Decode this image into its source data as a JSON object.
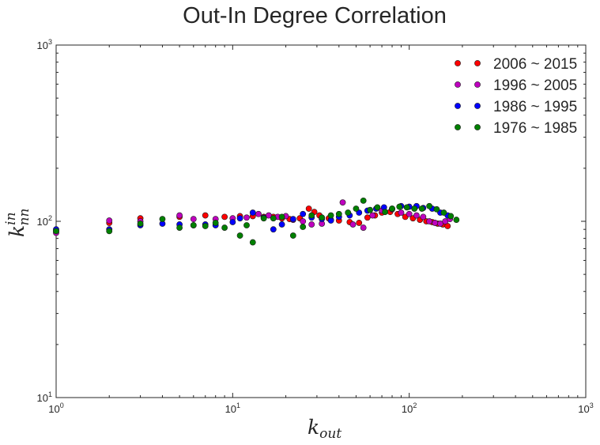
{
  "chart_data": {
    "type": "scatter",
    "title": "Out-In Degree Correlation",
    "xlabel": {
      "base": "k",
      "sub": "out"
    },
    "ylabel": {
      "base": "k",
      "sub": "nn",
      "sup": "in"
    },
    "xscale": "log",
    "yscale": "log",
    "xlim": [
      1,
      1000
    ],
    "ylim": [
      10,
      1000
    ],
    "xticks": [
      1,
      10,
      100,
      1000
    ],
    "yticks": [
      10,
      100,
      1000
    ],
    "tick_label_base": "10",
    "xtick_exponents": [
      "0",
      "1",
      "2",
      "3"
    ],
    "ytick_exponents": [
      "1",
      "2",
      "3"
    ],
    "grid": false,
    "legend_position": "top-right",
    "series": [
      {
        "name": "2006 ~ 2015",
        "color": "#ff0000",
        "x": [
          1,
          2,
          3,
          5,
          7,
          9,
          11,
          13,
          15,
          17,
          19,
          21,
          24,
          27,
          29,
          31,
          35,
          40,
          46,
          52,
          58,
          64,
          70,
          78,
          86,
          95,
          105,
          115,
          125,
          135,
          145,
          155,
          165
        ],
        "y": [
          88,
          98,
          104,
          106,
          108,
          106,
          107,
          107,
          106,
          106,
          104,
          103,
          104,
          118,
          113,
          108,
          104,
          101,
          99,
          98,
          105,
          108,
          112,
          113,
          110,
          106,
          104,
          102,
          100,
          99,
          97,
          96,
          94
        ]
      },
      {
        "name": "1996 ~ 2005",
        "color": "#bf00bf",
        "x": [
          1,
          2,
          3,
          5,
          6,
          8,
          10,
          12,
          14,
          16,
          18,
          20,
          22,
          25,
          28,
          32,
          36,
          42,
          48,
          55,
          62,
          70,
          80,
          90,
          100,
          110,
          120,
          130,
          140,
          150,
          160,
          170
        ],
        "y": [
          86,
          101,
          100,
          108,
          103,
          103,
          104,
          105,
          110,
          108,
          106,
          107,
          102,
          100,
          96,
          97,
          102,
          128,
          96,
          92,
          108,
          115,
          117,
          112,
          110,
          108,
          106,
          100,
          98,
          97,
          100,
          103
        ]
      },
      {
        "name": "1986 ~ 1995",
        "color": "#0000ff",
        "x": [
          1,
          2,
          3,
          4,
          5,
          6,
          7,
          8,
          10,
          11,
          13,
          15,
          17,
          19,
          22,
          25,
          28,
          32,
          36,
          40,
          46,
          52,
          58,
          65,
          72,
          80,
          90,
          100,
          110,
          120,
          135,
          150,
          165
        ],
        "y": [
          90,
          90,
          95,
          97,
          96,
          95,
          96,
          95,
          99,
          104,
          112,
          105,
          90,
          96,
          103,
          110,
          105,
          103,
          101,
          106,
          108,
          112,
          115,
          118,
          120,
          118,
          122,
          121,
          122,
          119,
          118,
          112,
          108
        ]
      },
      {
        "name": "1976 ~ 1985",
        "color": "#008000",
        "x": [
          1,
          2,
          3,
          4,
          5,
          6,
          7,
          8,
          9,
          11,
          12,
          13,
          15,
          17,
          19,
          22,
          25,
          28,
          32,
          36,
          40,
          45,
          50,
          55,
          60,
          66,
          73,
          80,
          88,
          97,
          107,
          118,
          130,
          143,
          157,
          172,
          185
        ],
        "y": [
          88,
          88,
          97,
          103,
          92,
          95,
          94,
          98,
          92,
          83,
          95,
          76,
          104,
          104,
          106,
          83,
          93,
          108,
          105,
          108,
          110,
          112,
          118,
          131,
          116,
          120,
          113,
          118,
          121,
          120,
          118,
          118,
          122,
          117,
          112,
          107,
          102
        ]
      }
    ]
  }
}
